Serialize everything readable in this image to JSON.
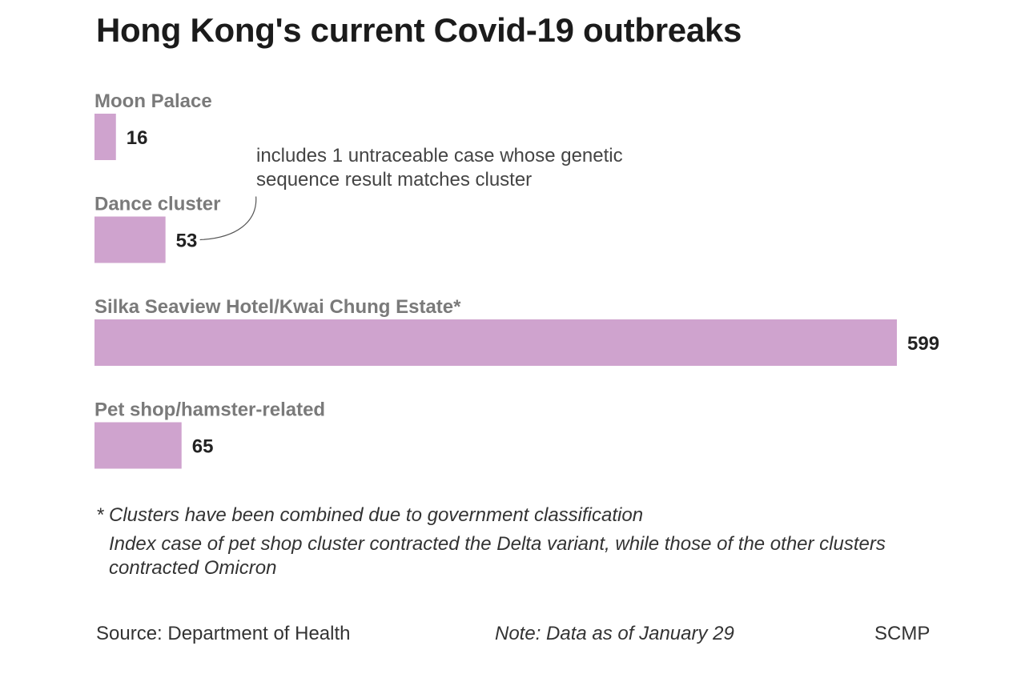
{
  "title": "Hong Kong's current Covid-19 outbreaks",
  "annotation": "includes 1 untraceable case whose genetic sequence result matches cluster",
  "footnotes": [
    "* Clusters have been combined due to government classification",
    "Index case of pet shop cluster contracted the Delta variant, while those of the other clusters contracted Omicron"
  ],
  "source": "Source: Department of Health",
  "note": "Note: Data as of January 29",
  "credit": "SCMP",
  "colors": {
    "bar": "#cfa3ce",
    "label": "#7a7a7a",
    "value": "#222222"
  },
  "chart_data": {
    "type": "bar",
    "orientation": "horizontal",
    "categories": [
      "Moon Palace",
      "Dance cluster",
      "Silka Seaview Hotel/Kwai Chung Estate*",
      "Pet shop/hamster-related"
    ],
    "values": [
      16,
      53,
      599,
      65
    ],
    "value_labels": [
      "16",
      "53",
      "599",
      "65"
    ],
    "annotated_category": "Dance cluster",
    "xlim": [
      0,
      599
    ],
    "grid": false,
    "legend": "none"
  }
}
